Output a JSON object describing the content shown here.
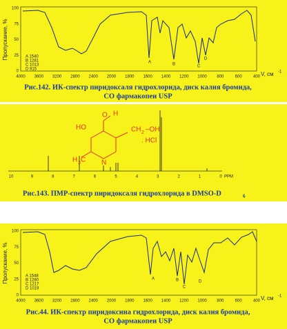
{
  "figures": [
    {
      "y_label": "Пропускание, %",
      "y_ticks": [
        100,
        75,
        50,
        25,
        0
      ],
      "x_ticks": [
        4000,
        3600,
        3200,
        2800,
        2400,
        2000,
        1800,
        1600,
        1400,
        1200,
        1000,
        800,
        600,
        400
      ],
      "x_label": "V, см",
      "x_label_sup": "-1",
      "peak_labels": [
        "A",
        "B",
        "C",
        "D"
      ],
      "legend": [
        "A 1540",
        "B 1281",
        "C 1013",
        "D 915"
      ],
      "caption": [
        "Рис.142. ИК-спектр пиридоксаля гидрохлорида, диск калия бромида,",
        "СО фармакопеи USP"
      ]
    },
    {
      "structure": {
        "O": "O",
        "H": "H",
        "HO": "HO",
        "CH2OH": "CH",
        "sub2": "2",
        "OH": "–OH",
        "HCl": ". HCl",
        "H3C": "H",
        "sub3": "3",
        "C": "C",
        "N": "N"
      },
      "x_ticks": [
        10,
        9,
        8,
        7,
        6,
        5,
        4,
        3,
        2,
        1,
        0
      ],
      "x_unit": "PPM",
      "caption": "Рис.143. ПМР-спектр пиридоксаля гидрохлорида в DMSO-D",
      "caption_sub": "6"
    },
    {
      "y_label": "Пропускание, %",
      "y_ticks": [
        100,
        75,
        50,
        25,
        0
      ],
      "x_ticks": [
        4000,
        3600,
        3200,
        2800,
        2400,
        2000,
        1800,
        1600,
        1400,
        1200,
        1000,
        800,
        600,
        400
      ],
      "x_label": "V, см",
      "x_label_sup": "-1",
      "peak_labels": [
        "A",
        "B",
        "C",
        "D"
      ],
      "legend": [
        "A 1548",
        "B 1280",
        "C 1217",
        "D 1019"
      ],
      "caption": [
        "Рис.44. ИК-спектр пиридоксина гидрохлорида, диск калия бромида,",
        "СО фармакопеи USP"
      ]
    }
  ]
}
